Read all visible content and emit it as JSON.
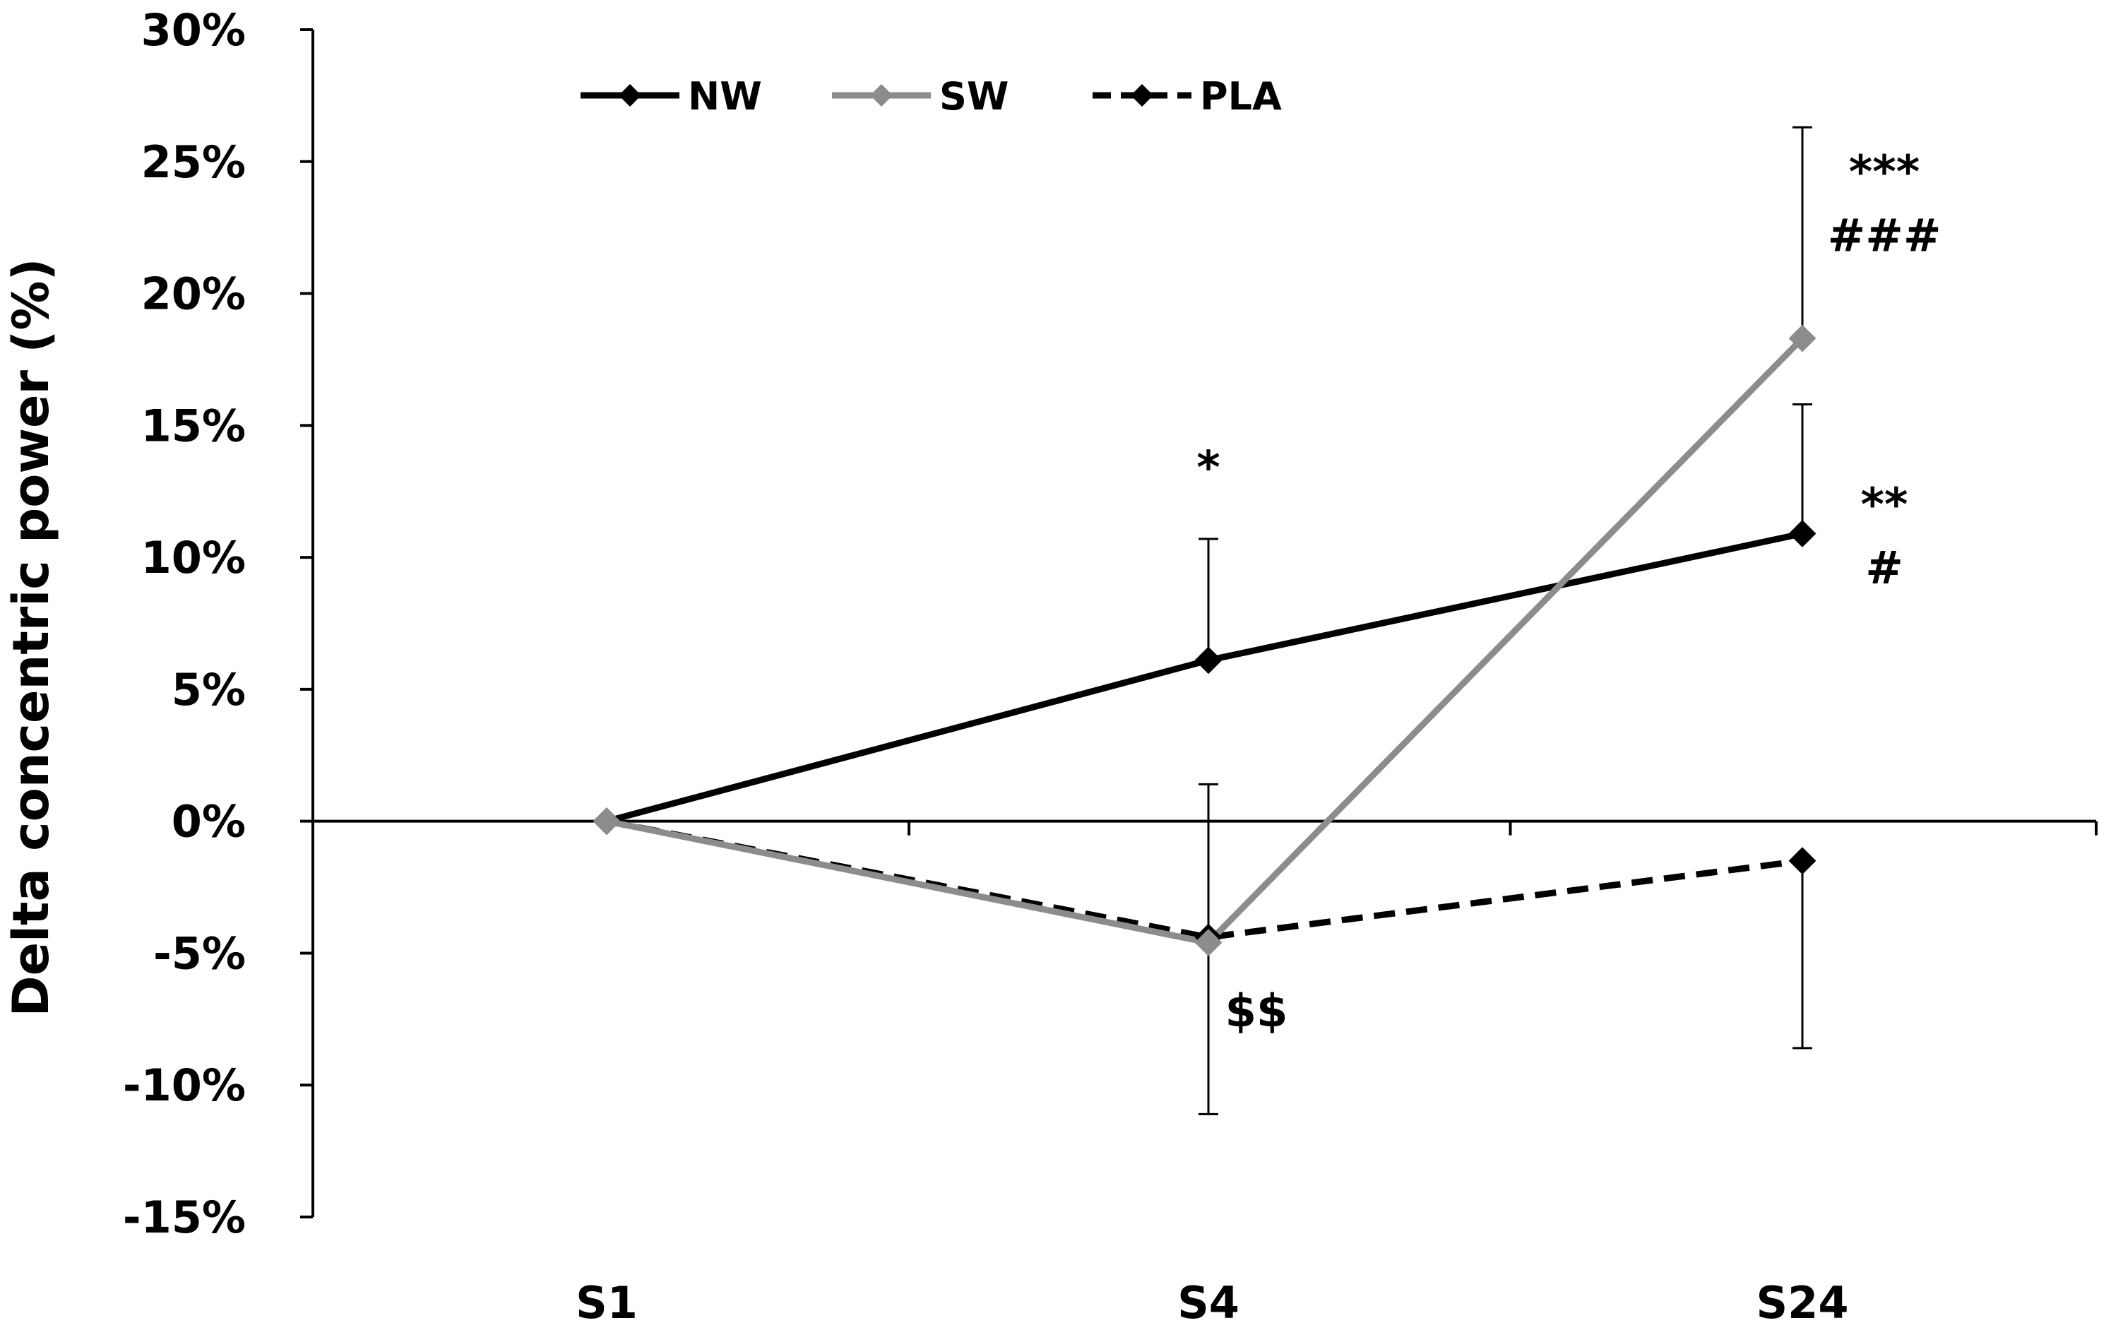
{
  "chart_data": {
    "type": "line",
    "title": "",
    "xlabel": "",
    "ylabel": "Delta concentric power (%)",
    "categories": [
      "S1",
      "S4",
      "S24"
    ],
    "yticks": [
      "30%",
      "25%",
      "20%",
      "15%",
      "10%",
      "5%",
      "0%",
      "-5%",
      "-10%",
      "-15%"
    ],
    "ytick_values": [
      30,
      25,
      20,
      15,
      10,
      5,
      0,
      -5,
      -10,
      -15
    ],
    "ylim": [
      -15,
      30
    ],
    "grid": false,
    "legend_position": "top-left",
    "series": [
      {
        "name": "NW",
        "values": [
          0,
          6.1,
          10.9
        ],
        "error_plus": [
          0,
          4.6,
          4.9
        ],
        "error_minus": [
          0,
          0,
          0
        ],
        "color": "#000000",
        "dash": "solid"
      },
      {
        "name": "SW",
        "values": [
          0,
          -4.6,
          18.3
        ],
        "error_plus": [
          0,
          0,
          8.0
        ],
        "error_minus": [
          0,
          0,
          0
        ],
        "color": "#8c8c8c",
        "dash": "solid"
      },
      {
        "name": "PLA",
        "values": [
          0,
          -4.4,
          -1.5
        ],
        "error_plus": [
          0,
          5.8,
          0
        ],
        "error_minus": [
          0,
          6.7,
          7.1
        ],
        "color": "#000000",
        "dash": "dashed"
      }
    ],
    "annotations": [
      {
        "text": "*",
        "category": "S4",
        "value": 13.4
      },
      {
        "text": "$$",
        "category": "S4",
        "value": -7.2
      },
      {
        "text": "***",
        "category": "S24",
        "value": 24.6
      },
      {
        "text": "###",
        "category": "S24",
        "value": 22.2
      },
      {
        "text": "**",
        "category": "S24",
        "value": 12.0
      },
      {
        "text": "#",
        "category": "S24",
        "value": 9.6
      }
    ]
  }
}
